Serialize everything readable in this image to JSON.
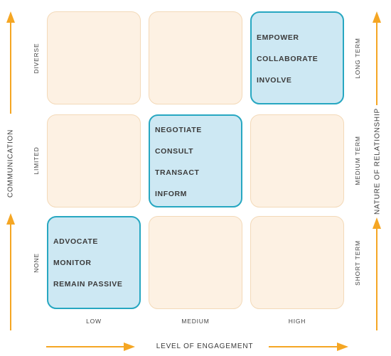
{
  "axes": {
    "x_title": "LEVEL OF ENGAGEMENT",
    "y_left_title": "COMMUNICATION",
    "y_right_title": "NATURE OF RELATIONSHIP",
    "columns": [
      "LOW",
      "MEDIUM",
      "HIGH"
    ],
    "left_rows": [
      "DIVERSE",
      "LIMITED",
      "NONE"
    ],
    "right_rows": [
      "LONG TERM",
      "MEDIUM TERM",
      "SHORT TERM"
    ]
  },
  "cells": {
    "high_long": [
      "EMPOWER",
      "COLLABORATE",
      "INVOLVE"
    ],
    "medium_medium": [
      "NEGOTIATE",
      "CONSULT",
      "TRANSACT",
      "INFORM"
    ],
    "low_short": [
      "ADVOCATE",
      "MONITOR",
      "REMAIN PASSIVE"
    ]
  },
  "colors": {
    "accent_arrow": "#f5a623",
    "cell_fill": "#fdf1e3",
    "cell_border": "#f3d9b8",
    "highlight_fill": "#cde8f3",
    "highlight_border": "#27a7c1"
  }
}
